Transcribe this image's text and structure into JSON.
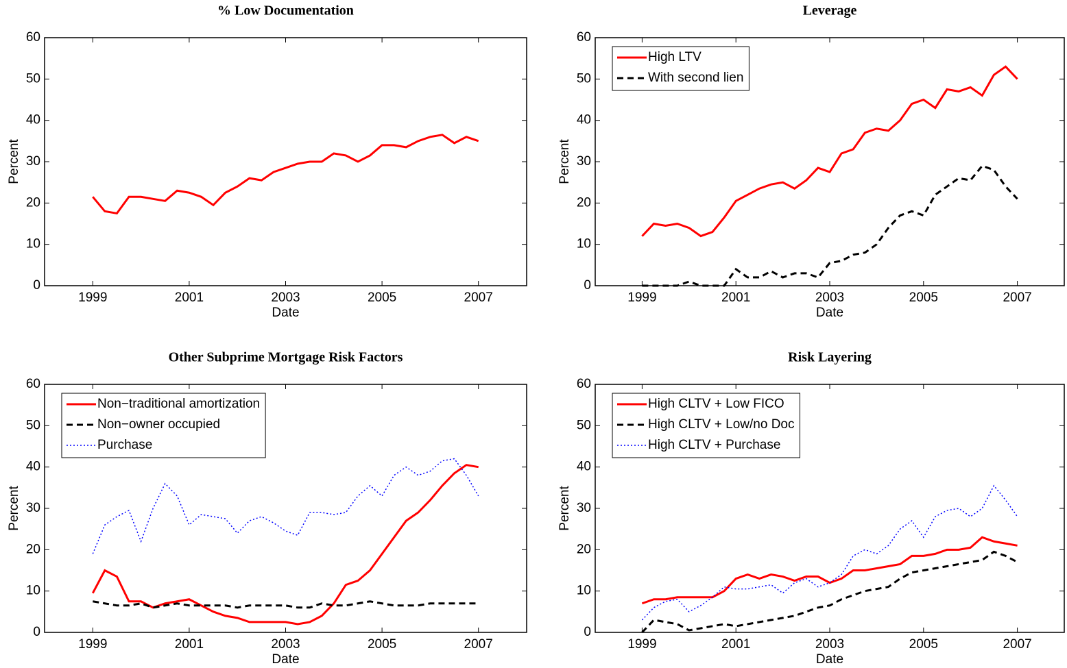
{
  "chart_data": [
    {
      "type": "line",
      "title": "% Low Documentation",
      "xlabel": "Date",
      "ylabel": "Percent",
      "x": [
        1999,
        1999.25,
        1999.5,
        1999.75,
        2000,
        2000.25,
        2000.5,
        2000.75,
        2001,
        2001.25,
        2001.5,
        2001.75,
        2002,
        2002.25,
        2002.5,
        2002.75,
        2003,
        2003.25,
        2003.5,
        2003.75,
        2004,
        2004.25,
        2004.5,
        2004.75,
        2005,
        2005.25,
        2005.5,
        2005.75,
        2006,
        2006.25,
        2006.5,
        2006.75,
        2007
      ],
      "series": [
        {
          "name": null,
          "color": "#ff0000",
          "style": "solid",
          "values": [
            21.5,
            18,
            17.5,
            21.5,
            21.5,
            21,
            20.5,
            23,
            22.5,
            21.5,
            19.5,
            22.5,
            24,
            26,
            25.5,
            27.5,
            28.5,
            29.5,
            30,
            30,
            32,
            31.5,
            30,
            31.5,
            34,
            34,
            33.5,
            35,
            36,
            36.5,
            34.5,
            36,
            35
          ]
        }
      ],
      "xlim": [
        1998,
        2008
      ],
      "ylim": [
        0,
        60
      ],
      "xticks": [
        1999,
        2001,
        2003,
        2005,
        2007
      ],
      "yticks": [
        0,
        10,
        20,
        30,
        40,
        50,
        60
      ],
      "grid": false
    },
    {
      "type": "line",
      "title": "Leverage",
      "xlabel": "Date",
      "ylabel": "Percent",
      "legend": "upper left",
      "x": [
        1999,
        1999.25,
        1999.5,
        1999.75,
        2000,
        2000.25,
        2000.5,
        2000.75,
        2001,
        2001.25,
        2001.5,
        2001.75,
        2002,
        2002.25,
        2002.5,
        2002.75,
        2003,
        2003.25,
        2003.5,
        2003.75,
        2004,
        2004.25,
        2004.5,
        2004.75,
        2005,
        2005.25,
        2005.5,
        2005.75,
        2006,
        2006.25,
        2006.5,
        2006.75,
        2007
      ],
      "series": [
        {
          "name": "High LTV",
          "color": "#ff0000",
          "style": "solid",
          "values": [
            12,
            15,
            14.5,
            15,
            14,
            12,
            13,
            16.5,
            20.5,
            22,
            23.5,
            24.5,
            25,
            23.5,
            25.5,
            28.5,
            27.5,
            32,
            33,
            37,
            38,
            37.5,
            40,
            44,
            45,
            43,
            47.5,
            47,
            48,
            46,
            51,
            53,
            50
          ]
        },
        {
          "name": "With second lien",
          "color": "#000000",
          "style": "dashed",
          "values": [
            0,
            0,
            0,
            0,
            1,
            0,
            0,
            0,
            4,
            2,
            2,
            3.5,
            2,
            3,
            3,
            2,
            5.5,
            6,
            7.5,
            8,
            10,
            14,
            17,
            18,
            17,
            22,
            24,
            26,
            25.5,
            29,
            28,
            24,
            21
          ]
        }
      ],
      "xlim": [
        1998,
        2008
      ],
      "ylim": [
        0,
        60
      ],
      "xticks": [
        1999,
        2001,
        2003,
        2005,
        2007
      ],
      "yticks": [
        0,
        10,
        20,
        30,
        40,
        50,
        60
      ],
      "grid": false
    },
    {
      "type": "line",
      "title": "Other Subprime Mortgage Risk Factors",
      "xlabel": "Date",
      "ylabel": "Percent",
      "legend": "upper left",
      "x": [
        1999,
        1999.25,
        1999.5,
        1999.75,
        2000,
        2000.25,
        2000.5,
        2000.75,
        2001,
        2001.25,
        2001.5,
        2001.75,
        2002,
        2002.25,
        2002.5,
        2002.75,
        2003,
        2003.25,
        2003.5,
        2003.75,
        2004,
        2004.25,
        2004.5,
        2004.75,
        2005,
        2005.25,
        2005.5,
        2005.75,
        2006,
        2006.25,
        2006.5,
        2006.75,
        2007
      ],
      "series": [
        {
          "name": "Non−traditional amortization",
          "color": "#ff0000",
          "style": "solid",
          "values": [
            9.5,
            15,
            13.5,
            7.5,
            7.5,
            6,
            7,
            7.5,
            8,
            6.5,
            5,
            4,
            3.5,
            2.5,
            2.5,
            2.5,
            2.5,
            2,
            2.5,
            4,
            7,
            11.5,
            12.5,
            15,
            19,
            23,
            27,
            29,
            32,
            35.5,
            38.5,
            40.5,
            40
          ]
        },
        {
          "name": "Non−owner occupied",
          "color": "#000000",
          "style": "dashed",
          "values": [
            7.5,
            7,
            6.5,
            6.5,
            7,
            6,
            6.5,
            7,
            6.5,
            6.5,
            6.5,
            6.5,
            6,
            6.5,
            6.5,
            6.5,
            6.5,
            6,
            6,
            7,
            6.5,
            6.5,
            7,
            7.5,
            7,
            6.5,
            6.5,
            6.5,
            7,
            7,
            7,
            7,
            7
          ]
        },
        {
          "name": "Purchase",
          "color": "#0000ff",
          "style": "dotted",
          "values": [
            19,
            26,
            28,
            29.5,
            22,
            30,
            36,
            33,
            26,
            28.5,
            28,
            27.5,
            24,
            27,
            28,
            26.5,
            24.5,
            23.5,
            29,
            29,
            28.5,
            29,
            33,
            35.5,
            33,
            38,
            40,
            38,
            39,
            41.5,
            42,
            38,
            33
          ]
        }
      ],
      "xlim": [
        1998,
        2008
      ],
      "ylim": [
        0,
        60
      ],
      "xticks": [
        1999,
        2001,
        2003,
        2005,
        2007
      ],
      "yticks": [
        0,
        10,
        20,
        30,
        40,
        50,
        60
      ],
      "grid": false
    },
    {
      "type": "line",
      "title": "Risk Layering",
      "xlabel": "Date",
      "ylabel": "Percent",
      "legend": "upper left",
      "x": [
        1999,
        1999.25,
        1999.5,
        1999.75,
        2000,
        2000.25,
        2000.5,
        2000.75,
        2001,
        2001.25,
        2001.5,
        2001.75,
        2002,
        2002.25,
        2002.5,
        2002.75,
        2003,
        2003.25,
        2003.5,
        2003.75,
        2004,
        2004.25,
        2004.5,
        2004.75,
        2005,
        2005.25,
        2005.5,
        2005.75,
        2006,
        2006.25,
        2006.5,
        2006.75,
        2007
      ],
      "series": [
        {
          "name": "High CLTV + Low FICO",
          "color": "#ff0000",
          "style": "solid",
          "values": [
            7,
            8,
            8,
            8.5,
            8.5,
            8.5,
            8.5,
            10,
            13,
            14,
            13,
            14,
            13.5,
            12.5,
            13.5,
            13.5,
            12,
            13,
            15,
            15,
            15.5,
            16,
            16.5,
            18.5,
            18.5,
            19,
            20,
            20,
            20.5,
            23,
            22,
            21.5,
            21
          ]
        },
        {
          "name": "High CLTV + Low/no Doc",
          "color": "#000000",
          "style": "dashed",
          "values": [
            0,
            3,
            2.5,
            2,
            0.5,
            1,
            1.5,
            2,
            1.5,
            2,
            2.5,
            3,
            3.5,
            4,
            5,
            6,
            6.5,
            8,
            9,
            10,
            10.5,
            11,
            13,
            14.5,
            15,
            15.5,
            16,
            16.5,
            17,
            17.5,
            19.5,
            18.5,
            17
          ]
        },
        {
          "name": "High CLTV + Purchase",
          "color": "#0000ff",
          "style": "dotted",
          "values": [
            3,
            6,
            7.5,
            8,
            5,
            6.5,
            8.5,
            11,
            10.5,
            10.5,
            11,
            11.5,
            9.5,
            12,
            13,
            11,
            12,
            14,
            18.5,
            20,
            19,
            21,
            25,
            27,
            23,
            28,
            29.5,
            30,
            28,
            30,
            35.5,
            32,
            28
          ]
        }
      ],
      "xlim": [
        1998,
        2008
      ],
      "ylim": [
        0,
        60
      ],
      "xticks": [
        1999,
        2001,
        2003,
        2005,
        2007
      ],
      "yticks": [
        0,
        10,
        20,
        30,
        40,
        50,
        60
      ],
      "grid": false
    }
  ]
}
